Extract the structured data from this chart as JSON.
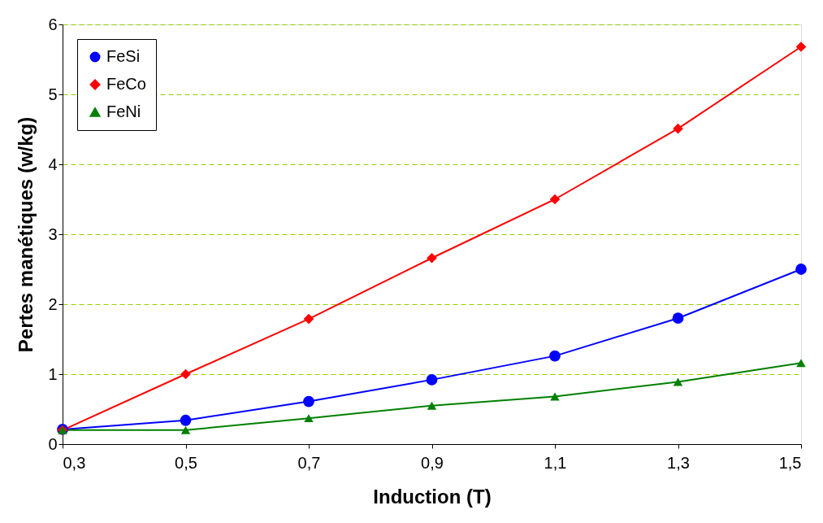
{
  "chart_data": {
    "type": "line",
    "xlabel": "Induction (T)",
    "ylabel": "Pertes manétiques (w/kg)",
    "x": [
      0.3,
      0.5,
      0.7,
      0.9,
      1.1,
      1.3,
      1.5
    ],
    "series": [
      {
        "name": "FeSi",
        "color": "#0000ff",
        "marker": "circle",
        "values": [
          0.21,
          0.34,
          0.61,
          0.92,
          1.26,
          1.8,
          2.5
        ]
      },
      {
        "name": "FeCo",
        "color": "#ff0000",
        "marker": "diamond",
        "values": [
          0.2,
          1.0,
          1.79,
          2.66,
          3.5,
          4.51,
          5.68
        ]
      },
      {
        "name": "FeNi",
        "color": "#008000",
        "marker": "triangle",
        "values": [
          0.2,
          0.2,
          0.37,
          0.55,
          0.68,
          0.89,
          1.16
        ]
      }
    ],
    "xlim": [
      0.3,
      1.5
    ],
    "ylim": [
      0,
      6
    ],
    "xticks": [
      {
        "value": 0.3,
        "label": "0,3"
      },
      {
        "value": 0.5,
        "label": "0,5"
      },
      {
        "value": 0.7,
        "label": "0,7"
      },
      {
        "value": 0.9,
        "label": "0,9"
      },
      {
        "value": 1.1,
        "label": "1,1"
      },
      {
        "value": 1.3,
        "label": "1,3"
      },
      {
        "value": 1.5,
        "label": "1,5"
      }
    ],
    "yticks": [
      0,
      1,
      2,
      3,
      4,
      5,
      6
    ],
    "grid": "y",
    "legend": "top left",
    "line_style": "solid"
  }
}
